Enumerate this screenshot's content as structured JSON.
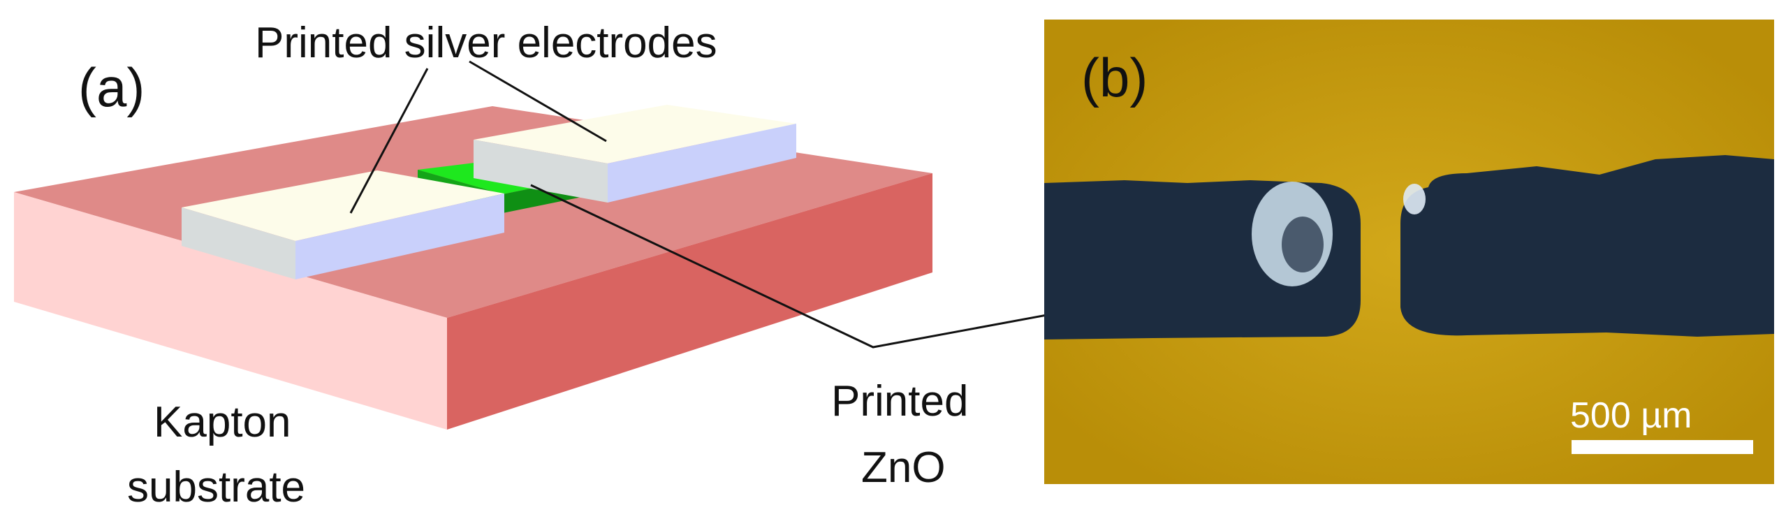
{
  "panel_a": {
    "label": "(a)",
    "electrodes_label": "Printed silver electrodes",
    "substrate_label_line1": "Kapton",
    "substrate_label_line2": "substrate"
  },
  "panel_b": {
    "label": "(b)",
    "scale_bar_label": "500 µm"
  },
  "zno_label_line1": "Printed",
  "zno_label_line2": "ZnO",
  "colors": {
    "substrate_top": "#df8a88",
    "substrate_front": "#d96461",
    "substrate_left": "#ffd3d2",
    "electrode_top": "#fdfcea",
    "electrode_side": "#c9d0fb",
    "electrode_front": "#d7dcdc",
    "zno_top": "#1ee81e",
    "zno_side": "#0f8f14",
    "photo_background": "#c49a10",
    "photo_electrode": "#1c2c40"
  }
}
